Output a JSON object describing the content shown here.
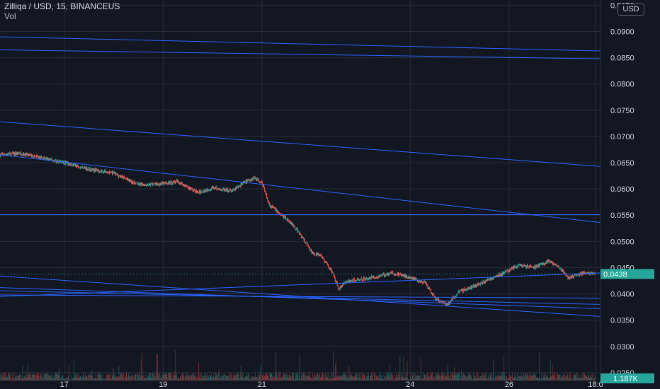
{
  "legend": {
    "title": "Zilliqa / USD, 15, BINANCEUS",
    "volume_label": "Vol"
  },
  "price_scale": {
    "currency": "USD",
    "last_price": "0.0438",
    "last_volume": "1.187K"
  },
  "colors": {
    "background": "#131722",
    "up": "#26a69a",
    "down": "#ef5350",
    "trendline": "#2962ff",
    "grid": "#2a2e39",
    "text": "#d1d4dc"
  },
  "chart_data": {
    "type": "candlestick",
    "title": "Zilliqa / USD, 15, BINANCEUS",
    "y_ticks": [
      "0.0250",
      "0.0300",
      "0.0350",
      "0.0400",
      "0.0450",
      "0.0500",
      "0.0550",
      "0.0600",
      "0.0650",
      "0.0700",
      "0.0750",
      "0.0800",
      "0.0850",
      "0.0900",
      "0.0950"
    ],
    "ylim": [
      0.0235,
      0.096
    ],
    "x_ticks": [
      "17",
      "19",
      "21",
      "24",
      "26",
      "18:0"
    ],
    "x_tick_positions_days": [
      17,
      19,
      21,
      24,
      26,
      27.75
    ],
    "xlim_days": [
      15.7,
      27.85
    ],
    "price_path": [
      {
        "day": 15.7,
        "price": 0.0665
      },
      {
        "day": 16.1,
        "price": 0.0668
      },
      {
        "day": 16.5,
        "price": 0.066
      },
      {
        "day": 17.0,
        "price": 0.065
      },
      {
        "day": 17.5,
        "price": 0.0638
      },
      {
        "day": 18.0,
        "price": 0.063
      },
      {
        "day": 18.5,
        "price": 0.0608
      },
      {
        "day": 19.0,
        "price": 0.061
      },
      {
        "day": 19.3,
        "price": 0.0614
      },
      {
        "day": 19.7,
        "price": 0.0593
      },
      {
        "day": 20.0,
        "price": 0.0602
      },
      {
        "day": 20.4,
        "price": 0.0596
      },
      {
        "day": 20.6,
        "price": 0.061
      },
      {
        "day": 20.85,
        "price": 0.0622
      },
      {
        "day": 21.0,
        "price": 0.0612
      },
      {
        "day": 21.15,
        "price": 0.057
      },
      {
        "day": 21.4,
        "price": 0.055
      },
      {
        "day": 21.6,
        "price": 0.0535
      },
      {
        "day": 21.8,
        "price": 0.051
      },
      {
        "day": 22.0,
        "price": 0.048
      },
      {
        "day": 22.2,
        "price": 0.0472
      },
      {
        "day": 22.4,
        "price": 0.0445
      },
      {
        "day": 22.55,
        "price": 0.041
      },
      {
        "day": 22.7,
        "price": 0.0423
      },
      {
        "day": 23.0,
        "price": 0.0428
      },
      {
        "day": 23.3,
        "price": 0.0432
      },
      {
        "day": 23.6,
        "price": 0.044
      },
      {
        "day": 24.0,
        "price": 0.0432
      },
      {
        "day": 24.3,
        "price": 0.042
      },
      {
        "day": 24.5,
        "price": 0.0392
      },
      {
        "day": 24.75,
        "price": 0.038
      },
      {
        "day": 25.0,
        "price": 0.0405
      },
      {
        "day": 25.3,
        "price": 0.0415
      },
      {
        "day": 25.6,
        "price": 0.0428
      },
      {
        "day": 25.9,
        "price": 0.044
      },
      {
        "day": 26.2,
        "price": 0.0455
      },
      {
        "day": 26.5,
        "price": 0.045
      },
      {
        "day": 26.8,
        "price": 0.0462
      },
      {
        "day": 27.0,
        "price": 0.0452
      },
      {
        "day": 27.2,
        "price": 0.043
      },
      {
        "day": 27.5,
        "price": 0.044
      },
      {
        "day": 27.75,
        "price": 0.0438
      }
    ],
    "volume_ylim": [
      0,
      12000
    ],
    "trendlines": [
      {
        "d1": 15.7,
        "p1": 0.089,
        "d2": 27.85,
        "p2": 0.0863
      },
      {
        "d1": 15.7,
        "p1": 0.0865,
        "d2": 27.85,
        "p2": 0.0848
      },
      {
        "d1": 15.7,
        "p1": 0.0728,
        "d2": 27.85,
        "p2": 0.0643
      },
      {
        "d1": 15.7,
        "p1": 0.0665,
        "d2": 27.85,
        "p2": 0.0536
      },
      {
        "d1": 15.7,
        "p1": 0.0551,
        "d2": 27.85,
        "p2": 0.0551
      },
      {
        "d1": 15.7,
        "p1": 0.0434,
        "d2": 27.85,
        "p2": 0.0357
      },
      {
        "d1": 15.7,
        "p1": 0.0412,
        "d2": 27.85,
        "p2": 0.0372
      },
      {
        "d1": 15.7,
        "p1": 0.0406,
        "d2": 27.85,
        "p2": 0.038
      },
      {
        "d1": 15.7,
        "p1": 0.0398,
        "d2": 27.85,
        "p2": 0.0392
      },
      {
        "d1": 15.7,
        "p1": 0.0395,
        "d2": 27.85,
        "p2": 0.044
      }
    ]
  }
}
